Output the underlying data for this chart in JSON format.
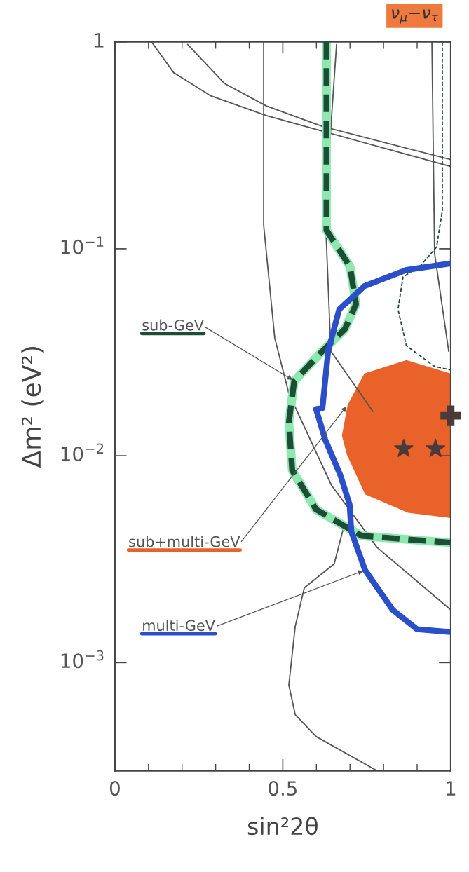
{
  "chart_data": {
    "type": "line",
    "title": "ν$_{μ}$−ν$_{τ}$",
    "xlabel": "sin²2θ",
    "ylabel": "Δm² (eV²)",
    "xlim": [
      0,
      1
    ],
    "xticks": [
      0,
      0.5,
      1
    ],
    "ylim": [
      0.0003,
      1
    ],
    "log": "y",
    "yticks": [
      1,
      {
        "value": 0.1,
        "label": "10$^{−1}$"
      },
      {
        "value": 0.01,
        "label": "10$^{−2}$"
      },
      {
        "value": 0.001,
        "label": "10$^{−3}$"
      }
    ],
    "grid": false,
    "legend": false,
    "series": [
      {
        "type": "line",
        "color": "#555555",
        "x": [
          0.109,
          0.175,
          0.284,
          0.451,
          0.618,
          1.0
        ],
        "values": [
          1,
          0.71,
          0.55,
          0.44,
          0.37,
          0.25
        ]
      },
      {
        "type": "line",
        "color": "#555555",
        "x": [
          0.217,
          0.326,
          0.451,
          0.618,
          1.0
        ],
        "values": [
          0.97,
          0.63,
          0.49,
          0.39,
          0.27
        ]
      },
      {
        "type": "line",
        "color": "#555555",
        "x": [
          0.443,
          0.443,
          0.476,
          0.518,
          0.645,
          0.781,
          1.0
        ],
        "values": [
          1,
          0.13,
          0.037,
          0.02,
          0.0072,
          0.0036,
          0.0018
        ]
      },
      {
        "type": "line",
        "color": "#555555",
        "x": [
          0.66,
          0.626,
          0.643,
          0.768
        ],
        "values": [
          0.97,
          0.153,
          0.032,
          0.0164
        ]
      },
      {
        "type": "line",
        "color": "#555555",
        "x": [
          0.681,
          0.653,
          0.564,
          0.537,
          0.518,
          0.537,
          0.599,
          0.781
        ],
        "values": [
          0.0045,
          0.003,
          0.0023,
          0.0015,
          0.00078,
          0.00056,
          0.00044,
          0.0003
        ]
      },
      {
        "type": "line",
        "color": "#555555",
        "x": [
          0.944,
          0.952,
          0.994
        ],
        "values": [
          1,
          0.095,
          0.032
        ]
      },
      {
        "type": "area",
        "name": "sub+multi-GeV",
        "color": "#e8622a",
        "x": [
          1.0,
          0.868,
          0.743,
          0.693,
          0.676,
          0.691,
          0.745,
          0.873,
          1.0
        ],
        "values": [
          0.025,
          0.029,
          0.025,
          0.0176,
          0.0125,
          0.0101,
          0.0065,
          0.0053,
          0.005
        ]
      },
      {
        "type": "line",
        "name": "sub-GeV",
        "color": "#1e4d36",
        "line_style": "dashed",
        "x": [
          0.63,
          0.63,
          0.7,
          0.718,
          0.685,
          0.618,
          0.534,
          0.518,
          0.528,
          0.599,
          0.691,
          0.735,
          1.0
        ],
        "values": [
          1,
          0.123,
          0.082,
          0.054,
          0.041,
          0.032,
          0.023,
          0.0145,
          0.0085,
          0.0055,
          0.0045,
          0.0041,
          0.0038
        ]
      },
      {
        "type": "line",
        "color": "#1e4d36",
        "line_style": "dashed",
        "x": [
          0.975,
          0.975,
          0.958,
          0.91,
          0.858,
          0.843,
          0.868,
          0.952,
          1.0
        ],
        "values": [
          1,
          0.153,
          0.102,
          0.083,
          0.073,
          0.051,
          0.034,
          0.027,
          0.026
        ]
      },
      {
        "type": "line",
        "name": "multi-GeV",
        "color": "#2b4fc9",
        "x": [
          1.0,
          0.868,
          0.743,
          0.668,
          0.635,
          0.618,
          0.599,
          0.626,
          0.672,
          0.699,
          0.704,
          0.745,
          0.827,
          0.9,
          0.99
        ],
        "values": [
          0.085,
          0.079,
          0.066,
          0.051,
          0.032,
          0.017,
          0.0168,
          0.012,
          0.008,
          0.0058,
          0.0043,
          0.0028,
          0.0018,
          0.00145,
          0.00141
        ]
      },
      {
        "type": "scatter",
        "marker": "star",
        "color": "#4a3a3a",
        "x": [
          0.86,
          0.955
        ],
        "values": [
          0.0108,
          0.0108
        ]
      },
      {
        "type": "scatter",
        "marker": "cross",
        "color": "#4a3a3a",
        "x": [
          1.0
        ],
        "values": [
          0.0156
        ]
      }
    ]
  }
}
